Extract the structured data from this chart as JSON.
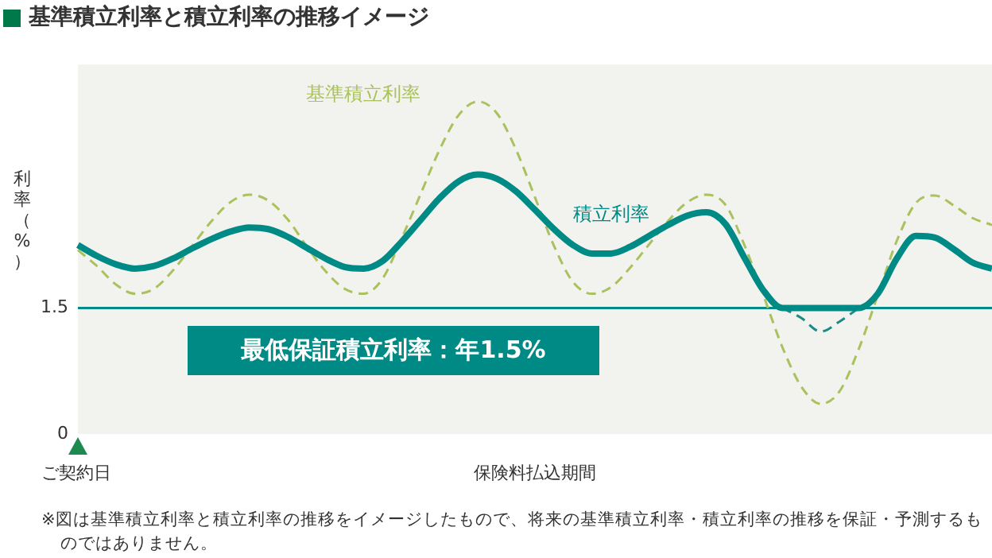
{
  "chart_data": {
    "type": "line",
    "title": "基準積立利率と積立利率の推移イメージ",
    "ylabel": "利率（%）",
    "xlabel": "保険料払込期間",
    "annotations": [
      "ご契約日",
      "※図は基準積立利率と積立利率の推移をイメージしたもので、将来の基準積立利率・積立利率の推移を保証・予測するものではありません。"
    ],
    "categories": [
      null,
      null,
      null,
      null,
      null,
      null,
      null,
      null,
      null,
      null,
      null,
      null,
      null,
      null,
      null,
      null,
      null,
      null,
      null,
      null,
      null,
      null,
      null,
      null,
      null,
      null,
      null,
      null,
      null,
      null,
      null,
      null,
      null,
      null,
      null,
      null,
      null,
      null,
      null,
      null,
      null,
      null,
      null,
      null,
      null,
      null,
      null,
      null,
      null
    ],
    "series": [
      {
        "name": "基準積立利率",
        "color": "#a9c25d",
        "line_style": "dashed",
        "values": [
          2.19,
          2.0,
          1.78,
          1.67,
          1.73,
          1.95,
          2.24,
          2.53,
          2.76,
          2.85,
          2.78,
          2.56,
          2.24,
          1.94,
          1.73,
          1.67,
          1.85,
          2.33,
          2.86,
          3.39,
          3.8,
          3.96,
          3.82,
          3.39,
          2.82,
          2.24,
          1.81,
          1.67,
          1.75,
          1.98,
          2.26,
          2.54,
          2.76,
          2.85,
          2.73,
          2.25,
          1.65,
          1.03,
          0.56,
          0.36,
          0.51,
          1.01,
          1.65,
          2.3,
          2.75,
          2.84,
          2.72,
          2.57,
          2.49
        ]
      },
      {
        "color": "#1a8c87",
        "line_style": "dashed",
        "values": [
          null,
          null,
          null,
          null,
          null,
          null,
          null,
          null,
          null,
          null,
          null,
          null,
          null,
          null,
          null,
          null,
          null,
          null,
          null,
          null,
          null,
          null,
          null,
          null,
          null,
          null,
          null,
          null,
          null,
          null,
          null,
          null,
          null,
          null,
          null,
          null,
          null,
          1.5,
          1.38,
          1.22,
          1.34,
          1.5,
          null,
          null,
          null,
          null,
          null,
          null,
          null
        ]
      },
      {
        "name": "積立利率",
        "color": "#008a85",
        "line_style": "solid",
        "values": [
          2.25,
          2.12,
          2.02,
          1.97,
          2.0,
          2.09,
          2.21,
          2.32,
          2.41,
          2.46,
          2.44,
          2.35,
          2.22,
          2.09,
          1.99,
          1.97,
          2.06,
          2.29,
          2.55,
          2.81,
          3.01,
          3.09,
          3.04,
          2.89,
          2.67,
          2.44,
          2.25,
          2.15,
          2.15,
          2.23,
          2.36,
          2.49,
          2.6,
          2.64,
          2.5,
          2.1,
          1.71,
          1.5,
          1.5,
          1.5,
          1.5,
          1.5,
          1.67,
          2.09,
          2.36,
          2.34,
          2.2,
          2.04,
          1.97
        ]
      }
    ],
    "ylim": [
      0,
      4.4
    ],
    "yticks": [
      0,
      1.5
    ],
    "ref_lines": [
      {
        "axis": "y",
        "value": 1.5,
        "label": "最低保証積立利率：年1.5%",
        "color": "#008a85"
      }
    ],
    "grid": false,
    "legend": false,
    "tick_labels": "y",
    "marker": "none"
  }
}
